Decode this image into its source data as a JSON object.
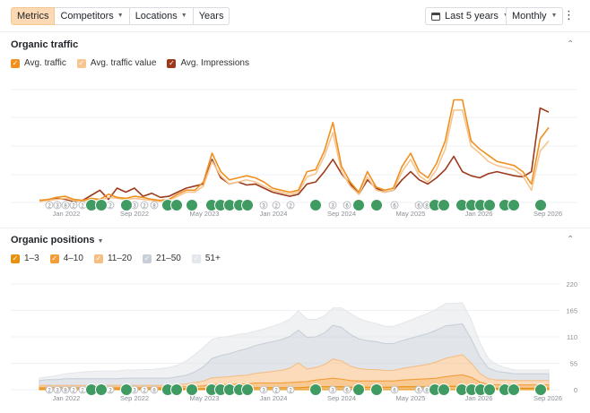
{
  "toolbar": {
    "tabs": [
      {
        "label": "Metrics",
        "active": true
      },
      {
        "label": "Competitors",
        "dropdown": true
      },
      {
        "label": "Locations",
        "dropdown": true
      },
      {
        "label": "Years"
      }
    ],
    "date_range": "Last 5 years",
    "granularity": "Monthly",
    "more_icon": "kebab-icon"
  },
  "traffic": {
    "title": "Organic traffic",
    "legend": [
      {
        "label": "Avg. traffic",
        "color": "#f0901e"
      },
      {
        "label": "Avg. traffic value",
        "color": "#f7c690"
      },
      {
        "label": "Avg. Impressions",
        "color": "#9c3a1c"
      }
    ]
  },
  "positions": {
    "title": "Organic positions",
    "legend": [
      {
        "label": "1–3",
        "color": "#e8900f"
      },
      {
        "label": "4–10",
        "color": "#f29d38"
      },
      {
        "label": "11–20",
        "color": "#f7be82"
      },
      {
        "label": "21–50",
        "color": "#c8cfd8"
      },
      {
        "label": "51+",
        "color": "#e3e6ea"
      }
    ]
  },
  "annotation_markers": [
    "2",
    "3",
    "8",
    "2",
    "2",
    "2",
    "3",
    "2",
    "8",
    "3",
    "2",
    "2",
    "3",
    "6",
    "6",
    "6",
    "8"
  ],
  "chart_data": [
    {
      "type": "line",
      "title": "Organic traffic",
      "x_tick_labels": [
        "Jan 2022",
        "Sep 2022",
        "May 2023",
        "Jan 2024",
        "Sep 2024",
        "May 2025",
        "Jan 2026",
        "Sep 2026"
      ],
      "grid": true,
      "legend_placement": "top-left",
      "series": [
        {
          "name": "Avg. traffic",
          "color": "#f0901e",
          "values": [
            2,
            3,
            5,
            6,
            3,
            2,
            4,
            3,
            8,
            5,
            4,
            6,
            5,
            3,
            2,
            3,
            8,
            12,
            12,
            20,
            48,
            30,
            22,
            24,
            26,
            24,
            20,
            14,
            12,
            10,
            12,
            30,
            32,
            50,
            78,
            35,
            20,
            10,
            30,
            15,
            12,
            14,
            35,
            48,
            30,
            24,
            38,
            60,
            100,
            100,
            60,
            52,
            46,
            40,
            38,
            36,
            30,
            18,
            62,
            73
          ]
        },
        {
          "name": "Avg. traffic value",
          "color": "#f7c690",
          "values": [
            1,
            2,
            3,
            4,
            2,
            1,
            3,
            2,
            5,
            4,
            3,
            4,
            3,
            2,
            1,
            2,
            6,
            10,
            10,
            16,
            40,
            26,
            18,
            20,
            22,
            20,
            16,
            12,
            10,
            8,
            10,
            25,
            28,
            45,
            68,
            30,
            16,
            8,
            25,
            12,
            10,
            12,
            30,
            42,
            26,
            20,
            32,
            52,
            90,
            90,
            55,
            48,
            40,
            36,
            34,
            32,
            26,
            12,
            50,
            60
          ]
        },
        {
          "name": "Avg. Impressions",
          "color": "#9c3a1c",
          "values": [
            2,
            2,
            4,
            3,
            1,
            2,
            7,
            12,
            3,
            14,
            10,
            14,
            6,
            9,
            5,
            6,
            10,
            14,
            16,
            18,
            42,
            24,
            18,
            20,
            17,
            18,
            14,
            10,
            8,
            6,
            8,
            18,
            20,
            30,
            42,
            28,
            18,
            8,
            22,
            14,
            10,
            12,
            22,
            30,
            22,
            18,
            24,
            32,
            45,
            30,
            26,
            24,
            28,
            30,
            28,
            26,
            25,
            30,
            92,
            88
          ]
        }
      ]
    },
    {
      "type": "area",
      "title": "Organic positions",
      "x_tick_labels": [
        "Jan 2022",
        "Sep 2022",
        "May 2023",
        "Jan 2024",
        "Sep 2024",
        "May 2025",
        "Jan 2026",
        "Sep 2026"
      ],
      "y_tick_labels": [
        "220",
        "165",
        "110",
        "55",
        "0"
      ],
      "ylim": [
        0,
        220
      ],
      "stacked": true,
      "grid": true,
      "legend_placement": "top-left",
      "series": [
        {
          "name": "1–3",
          "color": "#e8900f",
          "values": [
            2,
            2,
            2,
            2,
            2,
            2,
            2,
            2,
            2,
            2,
            2,
            2,
            2,
            2,
            2,
            2,
            2,
            2,
            2,
            2,
            3,
            3,
            3,
            3,
            3,
            4,
            4,
            4,
            4,
            4,
            4,
            5,
            6,
            6,
            6,
            6,
            5,
            5,
            5,
            5,
            5,
            5,
            6,
            6,
            6,
            6,
            6,
            7,
            7,
            7,
            6,
            4,
            3,
            3,
            3,
            3,
            3,
            3,
            3,
            3
          ]
        },
        {
          "name": "4–10",
          "color": "#f29d38",
          "values": [
            3,
            3,
            3,
            3,
            3,
            3,
            3,
            3,
            3,
            3,
            3,
            3,
            3,
            3,
            3,
            3,
            4,
            4,
            5,
            6,
            8,
            8,
            8,
            9,
            9,
            10,
            10,
            10,
            10,
            11,
            12,
            12,
            14,
            16,
            18,
            16,
            14,
            13,
            13,
            13,
            13,
            13,
            14,
            15,
            16,
            17,
            18,
            20,
            22,
            24,
            20,
            12,
            8,
            7,
            7,
            7,
            7,
            7,
            7,
            7
          ]
        },
        {
          "name": "11–20",
          "color": "#f7be82",
          "values": [
            4,
            4,
            4,
            4,
            4,
            4,
            4,
            4,
            4,
            4,
            4,
            4,
            4,
            4,
            4,
            4,
            5,
            6,
            8,
            10,
            14,
            15,
            16,
            17,
            18,
            20,
            22,
            24,
            26,
            30,
            40,
            26,
            26,
            30,
            40,
            38,
            30,
            26,
            24,
            24,
            22,
            22,
            24,
            26,
            28,
            30,
            34,
            38,
            40,
            42,
            30,
            18,
            12,
            10,
            10,
            9,
            9,
            9,
            9,
            9
          ]
        },
        {
          "name": "21–50",
          "color": "#c8cfd8",
          "values": [
            10,
            12,
            12,
            14,
            14,
            14,
            14,
            14,
            14,
            14,
            15,
            15,
            15,
            15,
            15,
            15,
            16,
            18,
            22,
            30,
            40,
            45,
            48,
            52,
            55,
            58,
            60,
            62,
            64,
            66,
            68,
            66,
            64,
            66,
            70,
            70,
            66,
            62,
            60,
            58,
            56,
            56,
            58,
            60,
            62,
            64,
            66,
            68,
            66,
            64,
            50,
            35,
            22,
            18,
            16,
            14,
            14,
            14,
            14,
            14
          ]
        },
        {
          "name": "51+",
          "color": "#e3e6ea",
          "values": [
            5,
            6,
            8,
            10,
            12,
            14,
            15,
            16,
            16,
            16,
            17,
            17,
            18,
            18,
            20,
            22,
            24,
            30,
            36,
            40,
            40,
            38,
            36,
            34,
            32,
            30,
            30,
            32,
            34,
            36,
            40,
            38,
            36,
            36,
            36,
            40,
            44,
            42,
            40,
            38,
            36,
            36,
            36,
            38,
            40,
            42,
            44,
            46,
            45,
            44,
            40,
            30,
            20,
            14,
            10,
            8,
            8,
            8,
            8,
            8
          ]
        }
      ]
    }
  ]
}
